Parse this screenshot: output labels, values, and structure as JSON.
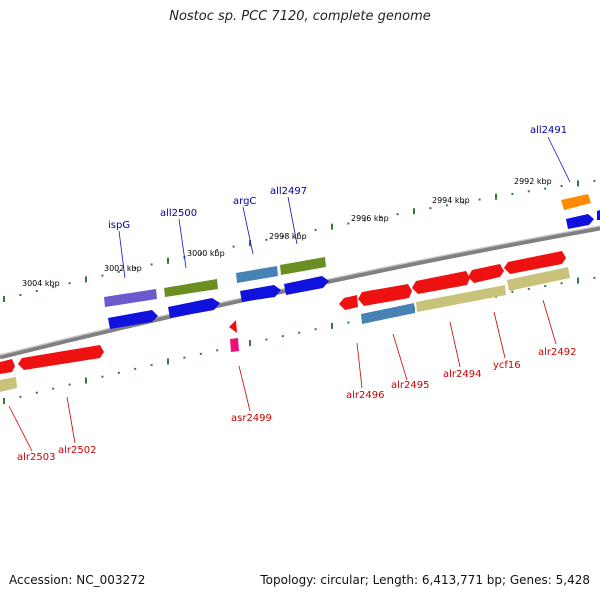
{
  "title": "Nostoc sp. PCC 7120, complete genome",
  "footer": {
    "accession": "Accession: NC_003272",
    "summary": "Topology: circular; Length: 6,413,771 bp; Genes: 5,428"
  },
  "colors": {
    "backbone": "#808080",
    "tick": "#2e7d32",
    "scale_text": "#000000",
    "blue_label": "#0000aa",
    "red_label": "#cc0000",
    "gene_red": "#ee1111",
    "gene_blue": "#1111dd",
    "gene_olive": "#6b8e23",
    "gene_khaki": "#c8c27a",
    "gene_steel": "#4682b4",
    "gene_slate": "#6a5acd",
    "gene_orange": "#ff8c00",
    "gene_pink": "#e8127a"
  },
  "scale_labels": [
    "3004 kbp",
    "3002 kbp",
    "3000 kbp",
    "2998 kbp",
    "2996 kbp",
    "2994 kbp",
    "2992 kbp"
  ],
  "top_labels": [
    "ispG",
    "all2500",
    "argC",
    "all2497",
    "all2491"
  ],
  "bottom_labels": [
    "alr2503",
    "alr2502",
    "asr2499",
    "alr2496",
    "alr2495",
    "alr2494",
    "ycf16",
    "alr2492"
  ]
}
